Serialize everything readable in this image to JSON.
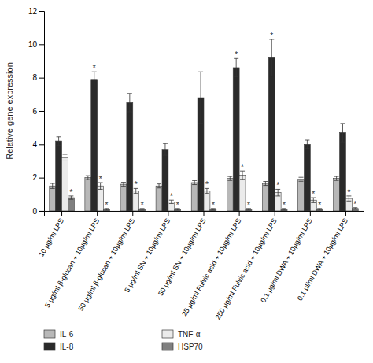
{
  "chart_data": {
    "type": "bar",
    "ylabel": "Relative gene expression",
    "categories": [
      "10 μg/ml LPS",
      "5 μg/ml β-glucan + 10μg/ml LPS",
      "50 μg/ml β-glucan + 10μg/ml LPS",
      "5 μg/ml SN + 10μg/ml LPS",
      "50 μg/ml SN + 10μg/ml LPS",
      "25 μg/ml Fulvic acid + 10μg/ml LPS",
      "250 μg/ml Fulvic acid + 10μg/ml LPS",
      "0.1 μg/ml DWA + 10μg/ml LPS",
      "0.1 μl/ml DWA + 10μg/ml LPS"
    ],
    "series": [
      {
        "name": "IL-6",
        "color": "#b8b8b8",
        "values": [
          1.5,
          2.0,
          1.6,
          1.5,
          1.7,
          1.95,
          1.65,
          1.9,
          1.95
        ],
        "errors": [
          0.15,
          0.12,
          0.12,
          0.12,
          0.12,
          0.12,
          0.12,
          0.12,
          0.12
        ],
        "annotations": [
          null,
          null,
          null,
          null,
          null,
          null,
          null,
          null,
          null
        ]
      },
      {
        "name": "IL-8",
        "color": "#2a2a2a",
        "values": [
          4.2,
          7.9,
          6.5,
          3.7,
          6.8,
          8.6,
          9.2,
          4.0,
          4.7
        ],
        "errors": [
          0.25,
          0.45,
          0.55,
          0.35,
          1.55,
          0.55,
          1.1,
          0.25,
          0.55
        ],
        "annotations": [
          null,
          "*",
          null,
          null,
          null,
          "*",
          "*",
          null,
          null
        ]
      },
      {
        "name": "TNF-α",
        "color": "#ebebeb",
        "values": [
          3.2,
          1.5,
          1.2,
          0.55,
          1.2,
          2.15,
          1.1,
          0.65,
          0.75
        ],
        "errors": [
          0.2,
          0.2,
          0.15,
          0.1,
          0.15,
          0.25,
          0.2,
          0.15,
          0.15
        ],
        "annotations": [
          null,
          "*",
          "*",
          "*",
          "*",
          "*",
          "*",
          "*",
          "*"
        ]
      },
      {
        "name": "HSP70",
        "color": "#808080",
        "values": [
          0.8,
          0.1,
          0.1,
          0.1,
          0.1,
          0.1,
          0.1,
          0.1,
          0.15
        ],
        "errors": [
          0.1,
          0.05,
          0.05,
          0.05,
          0.05,
          0.05,
          0.05,
          0.05,
          0.05
        ],
        "annotations": [
          "*",
          "*",
          "*",
          "*",
          "*",
          "*",
          "*",
          "*",
          "*"
        ]
      }
    ],
    "ylim": [
      0,
      12
    ],
    "yticks": [
      0,
      2,
      4,
      6,
      8,
      10,
      12
    ],
    "legend": "bottom"
  }
}
